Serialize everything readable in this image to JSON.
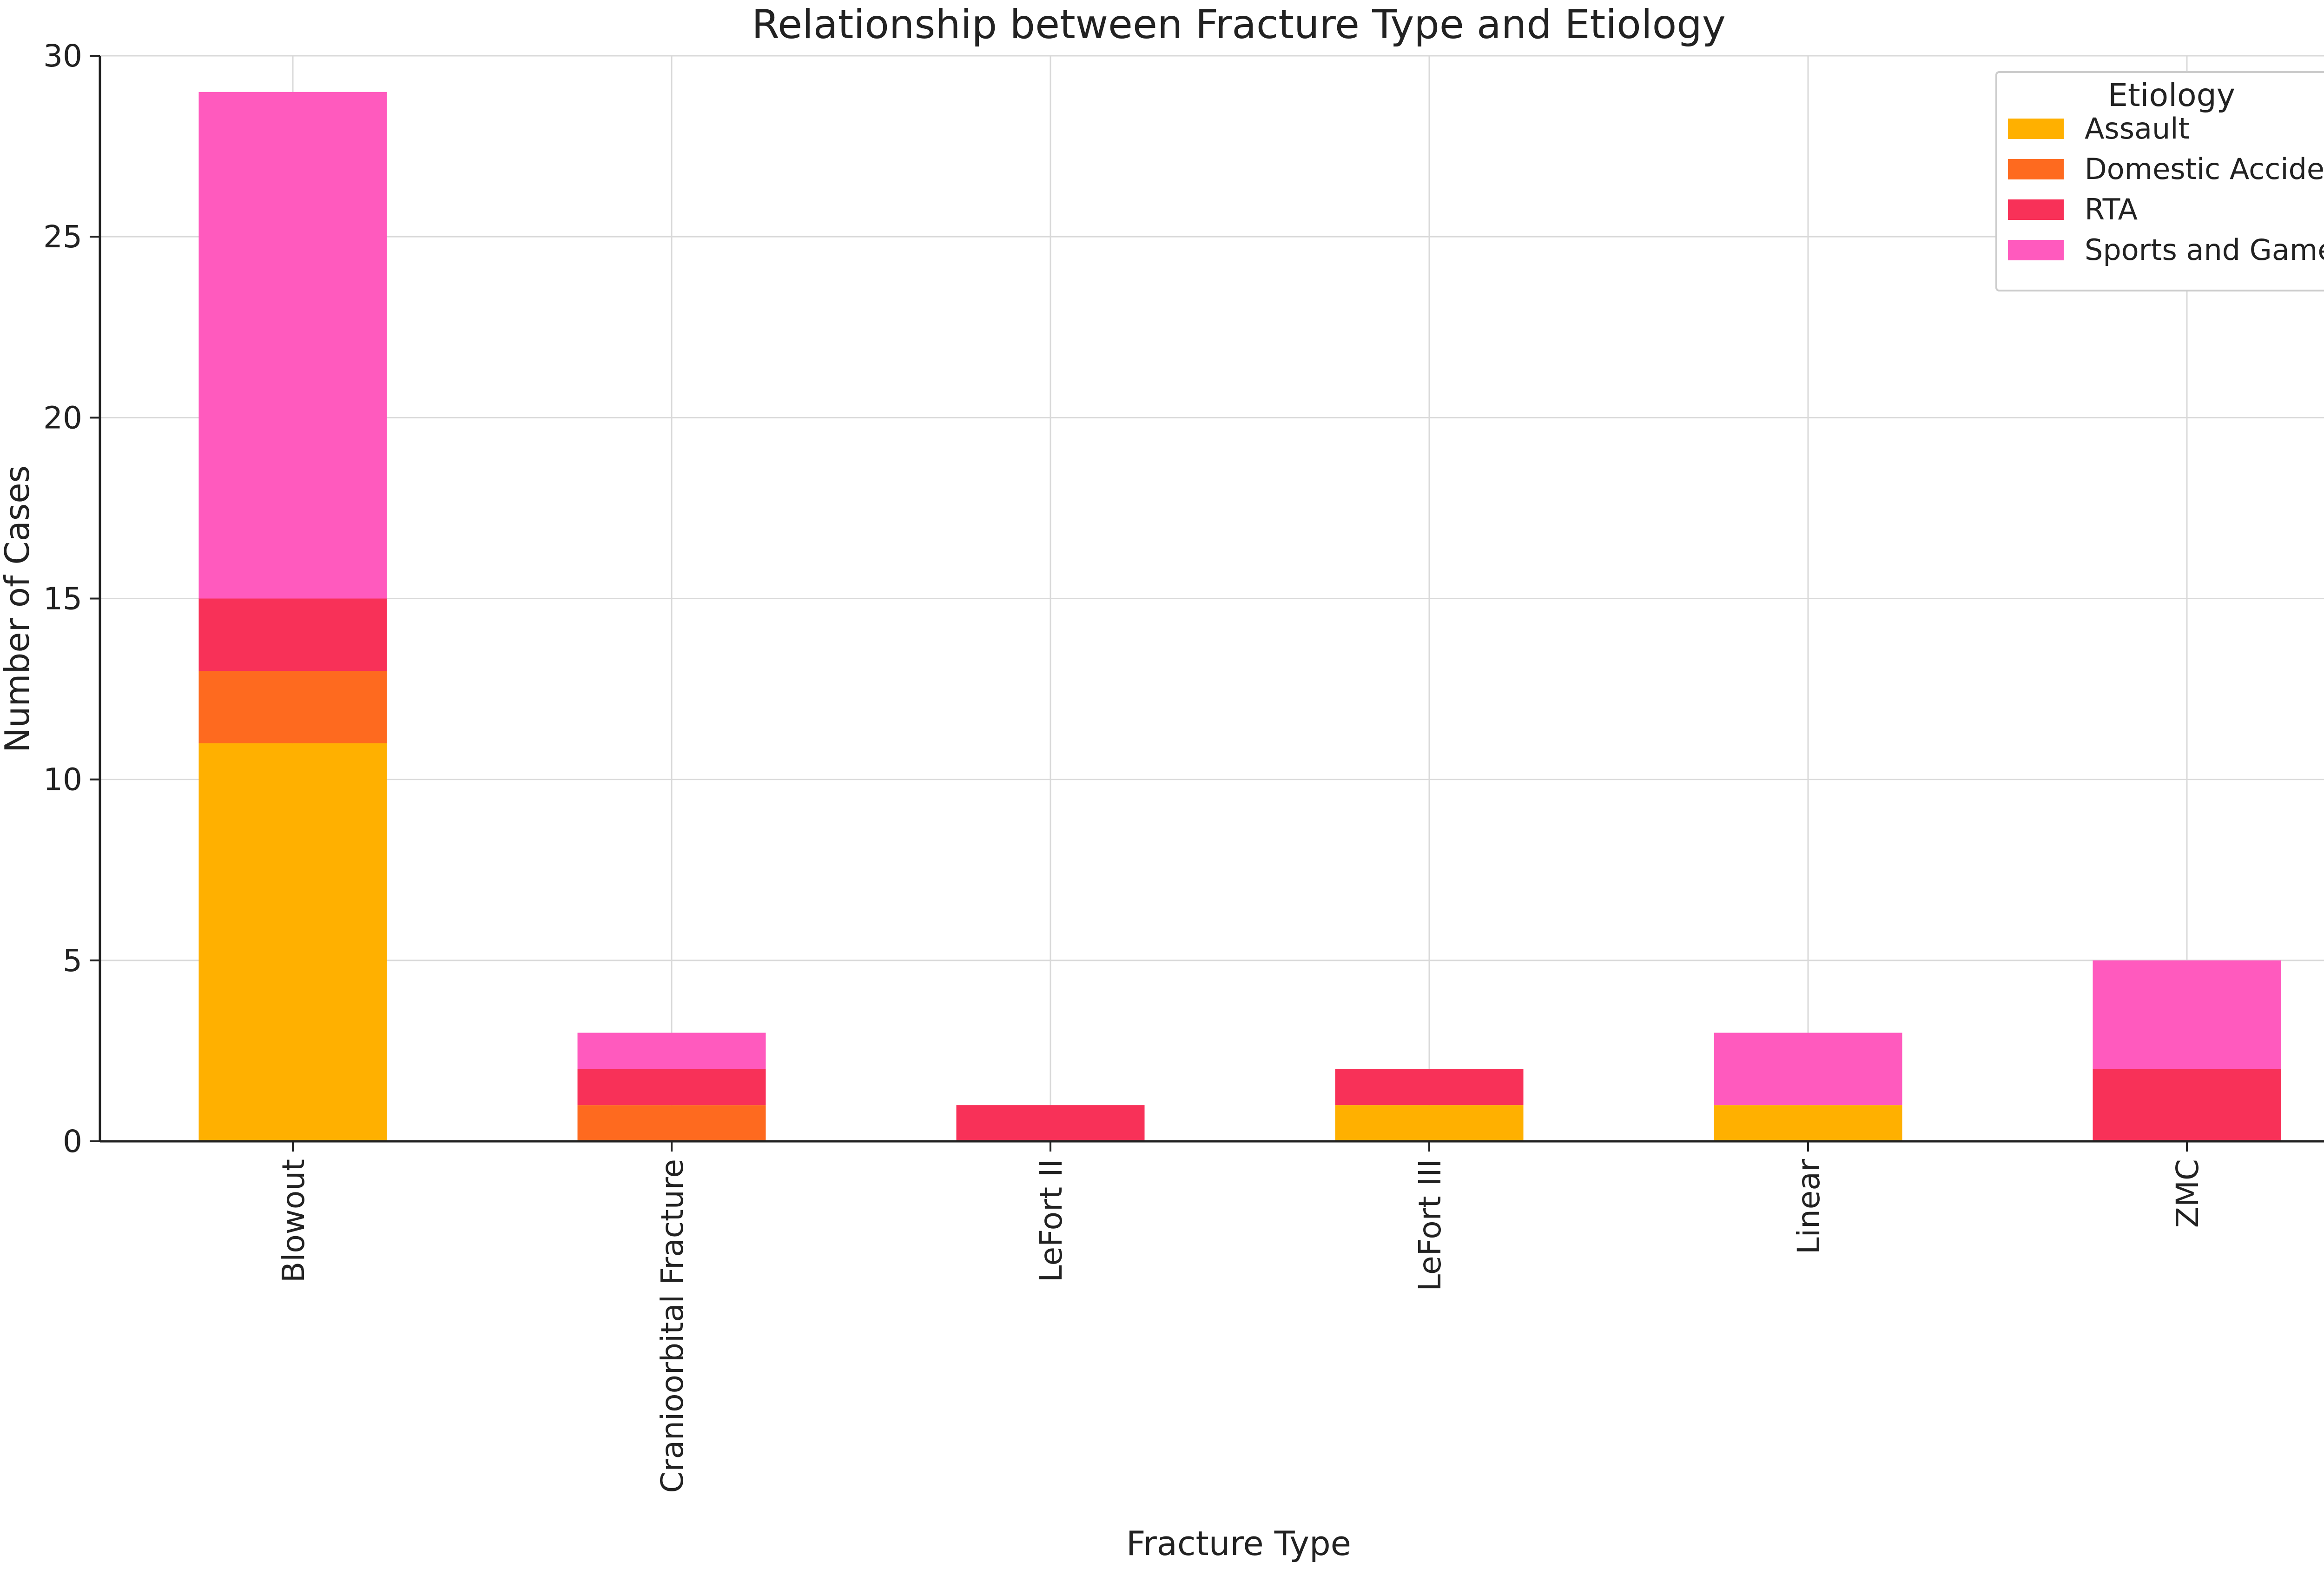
{
  "chart_data": {
    "type": "bar",
    "stacked": true,
    "title": "Relationship between Fracture Type and Etiology",
    "xlabel": "Fracture Type",
    "ylabel": "Number of Cases",
    "categories": [
      "Blowout",
      "Cranioorbital Fracture",
      "LeFort II",
      "LeFort III",
      "Linear",
      "ZMC"
    ],
    "series": [
      {
        "name": "Assault",
        "color": "#FFB000",
        "values": [
          11,
          0,
          0,
          1,
          1,
          0
        ]
      },
      {
        "name": "Domestic Accident",
        "color": "#FE6A1F",
        "values": [
          2,
          1,
          0,
          0,
          0,
          0
        ]
      },
      {
        "name": "RTA",
        "color": "#F83158",
        "values": [
          2,
          1,
          1,
          1,
          0,
          2
        ]
      },
      {
        "name": "Sports and Games",
        "color": "#FF5ABE",
        "values": [
          14,
          1,
          0,
          0,
          2,
          3
        ]
      }
    ],
    "ylim": [
      0,
      30
    ],
    "yticks": [
      0,
      5,
      10,
      15,
      20,
      25,
      30
    ],
    "grid": true,
    "legend": {
      "title": "Etiology",
      "position": "top-right"
    }
  }
}
